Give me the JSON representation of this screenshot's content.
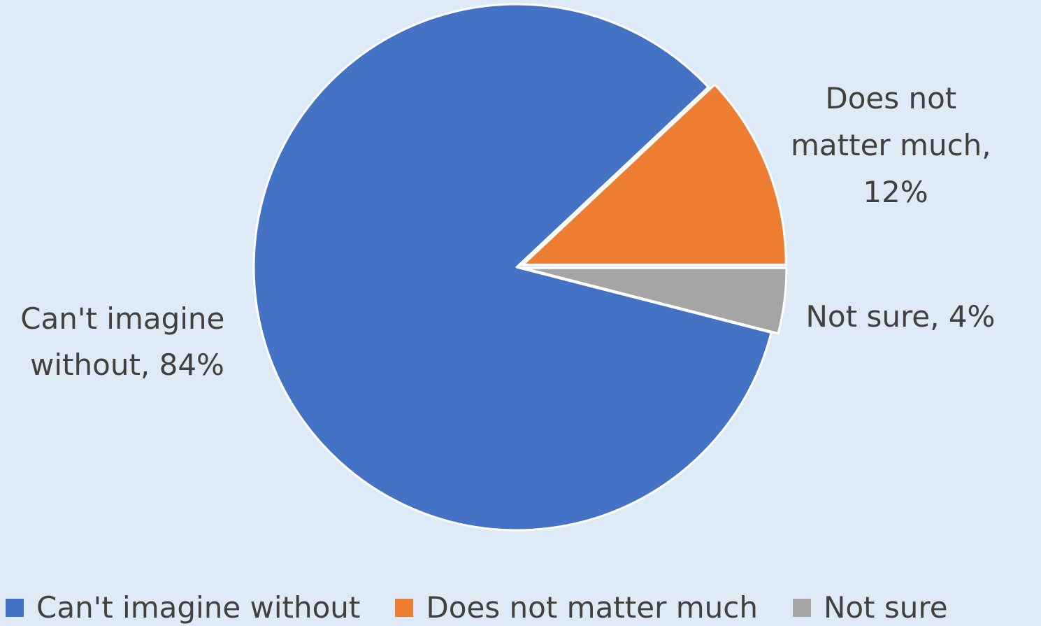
{
  "chart_data": {
    "type": "pie",
    "series": [
      {
        "categories": [
          "Can't imagine without",
          "Does not matter much",
          "Not sure"
        ],
        "values": [
          84,
          12,
          4
        ],
        "colors": [
          "#4472c4",
          "#ed7d31",
          "#a5a5a5"
        ]
      }
    ],
    "data_labels": [
      {
        "lines": [
          "Can't imagine",
          "without, 84%"
        ]
      },
      {
        "lines": [
          "Does not",
          "matter much,",
          "12%"
        ]
      },
      {
        "lines": [
          "Not sure, 4%"
        ]
      }
    ],
    "legend": {
      "position": "bottom",
      "entries": [
        "Can't imagine without",
        "Does not matter much",
        "Not sure"
      ]
    },
    "background_color": "#deebf7",
    "label_color": "#404040"
  }
}
